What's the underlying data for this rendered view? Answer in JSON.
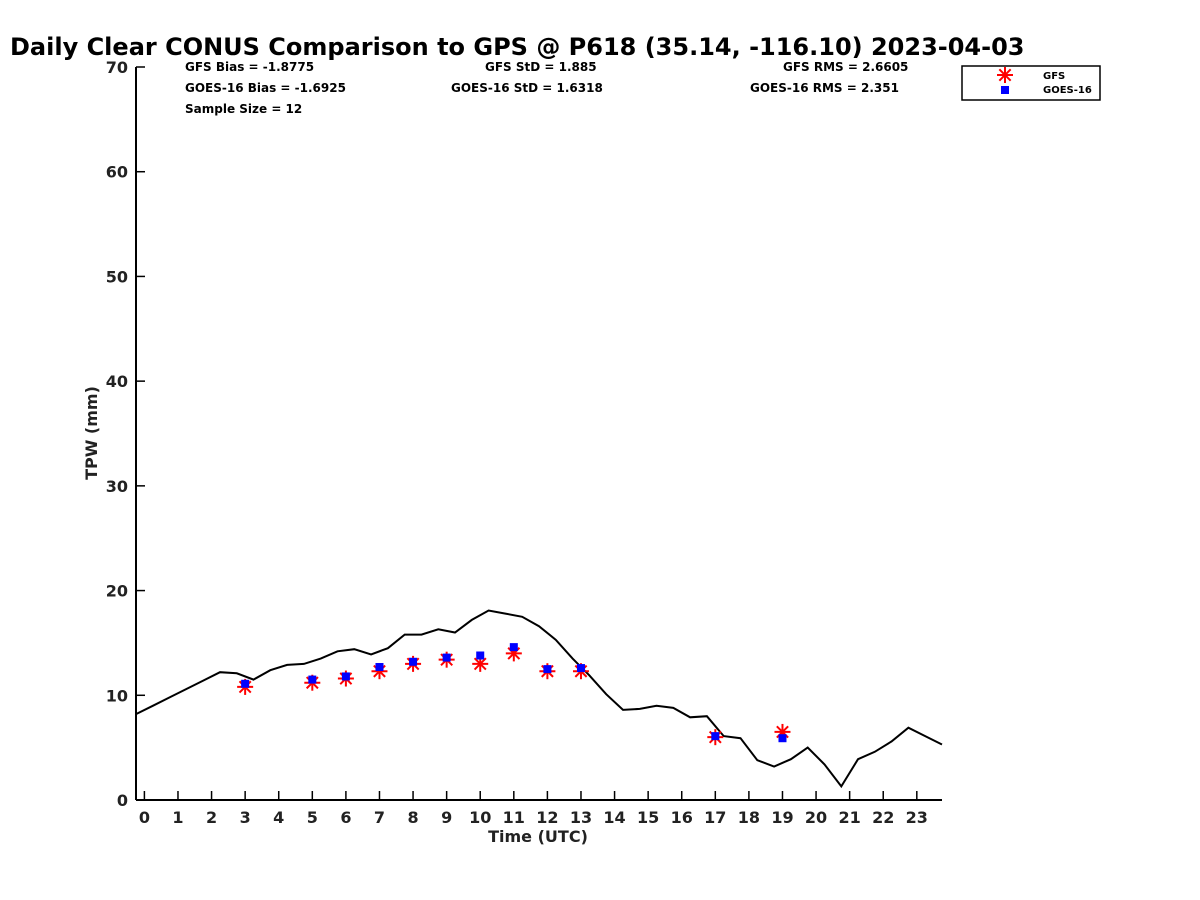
{
  "chart_data": {
    "type": "line",
    "title": "Daily Clear CONUS Comparison to GPS @ P618 (35.14, -116.10) 2023-04-03",
    "xlabel": "Time (UTC)",
    "ylabel": "TPW (mm)",
    "xlim": [
      -0.25,
      23.75
    ],
    "ylim": [
      0,
      70
    ],
    "x_ticks": [
      0,
      1,
      2,
      3,
      4,
      5,
      6,
      7,
      8,
      9,
      10,
      11,
      12,
      13,
      14,
      15,
      16,
      17,
      18,
      19,
      20,
      21,
      22,
      23
    ],
    "y_ticks": [
      0,
      10,
      20,
      30,
      40,
      50,
      60,
      70
    ],
    "grid": false,
    "legend_position": "top-right",
    "stats": {
      "gfs_bias": "GFS Bias = -1.8775",
      "goes_bias": "GOES-16 Bias = -1.6925",
      "sample_size": "Sample Size = 12",
      "gfs_std": "GFS StD = 1.885",
      "goes_std": "GOES-16 StD = 1.6318",
      "gfs_rms": "GFS RMS = 2.6605",
      "goes_rms": "GOES-16 RMS = 2.351"
    },
    "series": [
      {
        "marker": "line",
        "color": "#000000",
        "x": [
          -0.25,
          0.25,
          0.75,
          1.25,
          1.75,
          2.25,
          2.75,
          3.25,
          3.75,
          4.25,
          4.75,
          5.25,
          5.75,
          6.25,
          6.75,
          7.25,
          7.75,
          8.25,
          8.75,
          9.25,
          9.75,
          10.25,
          10.75,
          11.25,
          11.75,
          12.25,
          12.75,
          13.25,
          13.75,
          14.25,
          14.75,
          15.25,
          15.75,
          16.25,
          16.75,
          17.25,
          17.75,
          18.25,
          18.75,
          19.25,
          19.75,
          20.25,
          20.75,
          21.25,
          21.75,
          22.25,
          22.75,
          23.25,
          23.75
        ],
        "values": [
          8.2,
          9.0,
          9.8,
          10.6,
          11.4,
          12.2,
          12.1,
          11.5,
          12.4,
          12.9,
          13.0,
          13.5,
          14.2,
          14.4,
          13.9,
          14.5,
          15.8,
          15.8,
          16.3,
          16.0,
          17.2,
          18.1,
          17.8,
          17.5,
          16.6,
          15.3,
          13.5,
          11.9,
          10.1,
          8.6,
          8.7,
          9.0,
          8.8,
          7.9,
          8.0,
          6.1,
          5.9,
          3.8,
          3.2,
          3.9,
          5.0,
          3.4,
          1.3,
          3.9,
          4.6,
          5.6,
          6.9,
          6.1,
          5.3
        ]
      },
      {
        "name": "GFS",
        "marker": "asterisk",
        "color": "#ff0000",
        "x": [
          3,
          5,
          6,
          7,
          8,
          9,
          10,
          11,
          12,
          13,
          17,
          19
        ],
        "values": [
          10.8,
          11.2,
          11.6,
          12.3,
          13.0,
          13.4,
          13.0,
          14.0,
          12.3,
          12.3,
          6.0,
          6.5
        ]
      },
      {
        "name": "GOES-16",
        "marker": "square",
        "color": "#0000ff",
        "x": [
          3,
          5,
          6,
          7,
          8,
          9,
          10,
          11,
          12,
          13,
          17,
          19
        ],
        "values": [
          11.1,
          11.5,
          11.8,
          12.7,
          13.2,
          13.6,
          13.8,
          14.6,
          12.5,
          12.6,
          6.1,
          5.9
        ]
      }
    ]
  }
}
